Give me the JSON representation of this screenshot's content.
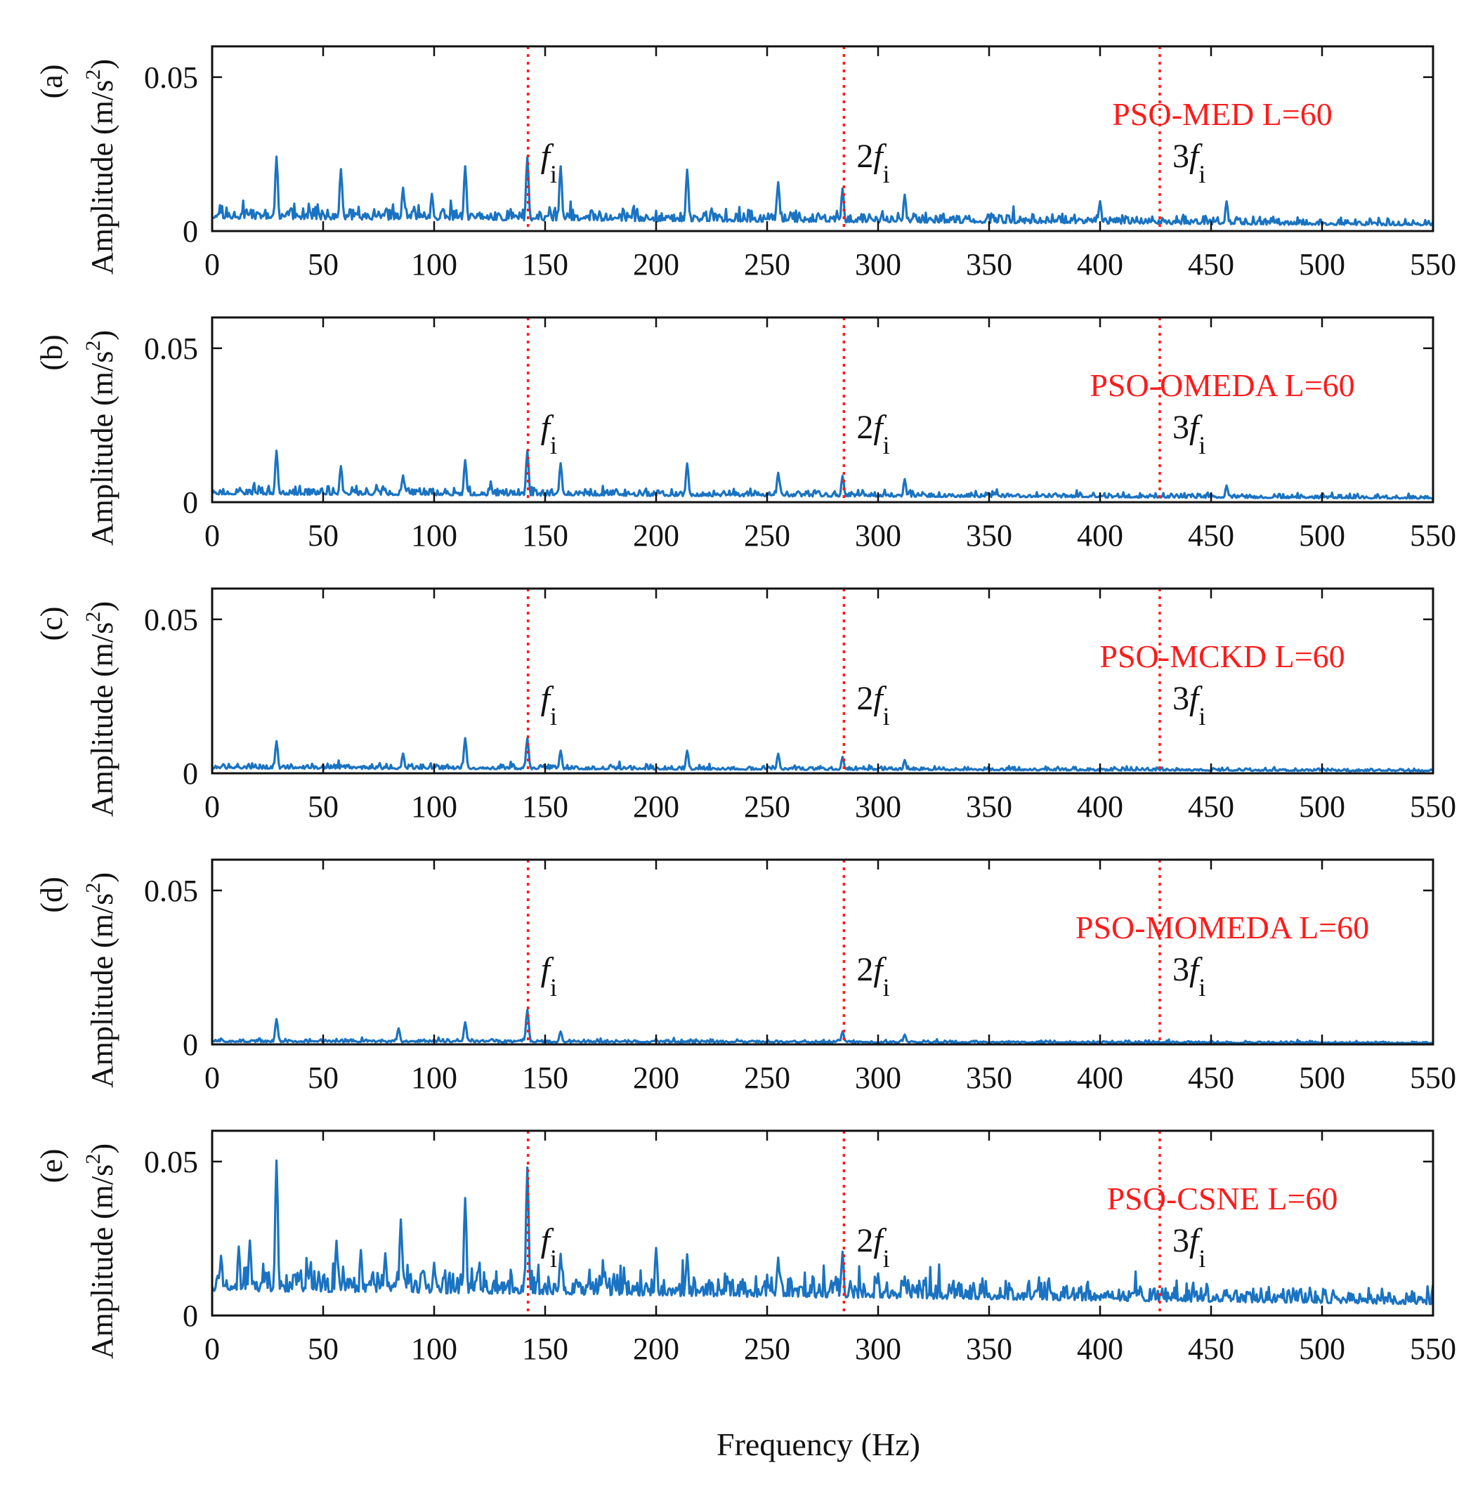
{
  "figure": {
    "xlabel": "Frequency (Hz)",
    "colors": {
      "spectrum": "#1a73c2",
      "marker": "#ff1a1a",
      "axis": "#111111"
    }
  },
  "chart_data": [
    {
      "type": "line",
      "panel_label": "(a)",
      "method_label": "PSO-MED L=60",
      "ylabel_prefix": "Amplitude (m/s",
      "ylabel_sup": "2",
      "ylabel_suffix": ")",
      "x_range": [
        0,
        550
      ],
      "ylim": [
        0,
        0.06
      ],
      "xticks": [
        "0",
        "50",
        "100",
        "150",
        "200",
        "250",
        "300",
        "350",
        "400",
        "450",
        "500",
        "550"
      ],
      "yticks": [
        "0",
        "0.05"
      ],
      "ytick_values": [
        0,
        0.05
      ],
      "baseline": 0.004,
      "noise": 0.0035,
      "seed": 11,
      "peaks": [
        {
          "f": 29,
          "a": 0.023
        },
        {
          "f": 58,
          "a": 0.019
        },
        {
          "f": 86,
          "a": 0.013
        },
        {
          "f": 99,
          "a": 0.011
        },
        {
          "f": 114,
          "a": 0.02
        },
        {
          "f": 142,
          "a": 0.023
        },
        {
          "f": 157,
          "a": 0.02
        },
        {
          "f": 214,
          "a": 0.019
        },
        {
          "f": 255,
          "a": 0.015
        },
        {
          "f": 284,
          "a": 0.013
        },
        {
          "f": 312,
          "a": 0.011
        },
        {
          "f": 400,
          "a": 0.009
        },
        {
          "f": 457,
          "a": 0.009
        }
      ],
      "harmonics": [
        {
          "freq": 142.3,
          "prefix": "",
          "symbol": "f",
          "sub": "i"
        },
        {
          "freq": 284.6,
          "prefix": "2",
          "symbol": "f",
          "sub": "i"
        },
        {
          "freq": 426.9,
          "prefix": "3",
          "symbol": "f",
          "sub": "i"
        }
      ]
    },
    {
      "type": "line",
      "panel_label": "(b)",
      "method_label": "PSO-OMEDA L=60",
      "ylabel_prefix": "Amplitude (m/s",
      "ylabel_sup": "2",
      "ylabel_suffix": ")",
      "x_range": [
        0,
        550
      ],
      "ylim": [
        0,
        0.06
      ],
      "xticks": [
        "0",
        "50",
        "100",
        "150",
        "200",
        "250",
        "300",
        "350",
        "400",
        "450",
        "500",
        "550"
      ],
      "yticks": [
        "0",
        "0.05"
      ],
      "ytick_values": [
        0,
        0.05
      ],
      "baseline": 0.0025,
      "noise": 0.0022,
      "seed": 23,
      "peaks": [
        {
          "f": 29,
          "a": 0.016
        },
        {
          "f": 58,
          "a": 0.011
        },
        {
          "f": 86,
          "a": 0.008
        },
        {
          "f": 114,
          "a": 0.013
        },
        {
          "f": 142,
          "a": 0.016
        },
        {
          "f": 157,
          "a": 0.012
        },
        {
          "f": 214,
          "a": 0.012
        },
        {
          "f": 255,
          "a": 0.009
        },
        {
          "f": 284,
          "a": 0.008
        },
        {
          "f": 312,
          "a": 0.007
        },
        {
          "f": 457,
          "a": 0.005
        }
      ],
      "harmonics": [
        {
          "freq": 142.3,
          "prefix": "",
          "symbol": "f",
          "sub": "i"
        },
        {
          "freq": 284.6,
          "prefix": "2",
          "symbol": "f",
          "sub": "i"
        },
        {
          "freq": 426.9,
          "prefix": "3",
          "symbol": "f",
          "sub": "i"
        }
      ]
    },
    {
      "type": "line",
      "panel_label": "(c)",
      "method_label": "PSO-MCKD L=60",
      "ylabel_prefix": "Amplitude (m/s",
      "ylabel_sup": "2",
      "ylabel_suffix": ")",
      "x_range": [
        0,
        550
      ],
      "ylim": [
        0,
        0.06
      ],
      "xticks": [
        "0",
        "50",
        "100",
        "150",
        "200",
        "250",
        "300",
        "350",
        "400",
        "450",
        "500",
        "550"
      ],
      "yticks": [
        "0",
        "0.05"
      ],
      "ytick_values": [
        0,
        0.05
      ],
      "baseline": 0.0015,
      "noise": 0.0014,
      "seed": 37,
      "peaks": [
        {
          "f": 29,
          "a": 0.01
        },
        {
          "f": 86,
          "a": 0.006
        },
        {
          "f": 114,
          "a": 0.011
        },
        {
          "f": 142,
          "a": 0.011
        },
        {
          "f": 157,
          "a": 0.007
        },
        {
          "f": 214,
          "a": 0.007
        },
        {
          "f": 255,
          "a": 0.006
        },
        {
          "f": 284,
          "a": 0.005
        },
        {
          "f": 312,
          "a": 0.004
        }
      ],
      "harmonics": [
        {
          "freq": 142.3,
          "prefix": "",
          "symbol": "f",
          "sub": "i"
        },
        {
          "freq": 284.6,
          "prefix": "2",
          "symbol": "f",
          "sub": "i"
        },
        {
          "freq": 426.9,
          "prefix": "3",
          "symbol": "f",
          "sub": "i"
        }
      ]
    },
    {
      "type": "line",
      "panel_label": "(d)",
      "method_label": "PSO-MOMEDA L=60",
      "ylabel_prefix": "Amplitude (m/s",
      "ylabel_sup": "2",
      "ylabel_suffix": ")",
      "x_range": [
        0,
        550
      ],
      "ylim": [
        0,
        0.06
      ],
      "xticks": [
        "0",
        "50",
        "100",
        "150",
        "200",
        "250",
        "300",
        "350",
        "400",
        "450",
        "500",
        "550"
      ],
      "yticks": [
        "0",
        "0.05"
      ],
      "ytick_values": [
        0,
        0.05
      ],
      "baseline": 0.0008,
      "noise": 0.0009,
      "seed": 51,
      "peaks": [
        {
          "f": 29,
          "a": 0.008
        },
        {
          "f": 84,
          "a": 0.005
        },
        {
          "f": 114,
          "a": 0.007
        },
        {
          "f": 142,
          "a": 0.011
        },
        {
          "f": 157,
          "a": 0.004
        },
        {
          "f": 284,
          "a": 0.004
        },
        {
          "f": 312,
          "a": 0.003
        }
      ],
      "harmonics": [
        {
          "freq": 142.3,
          "prefix": "",
          "symbol": "f",
          "sub": "i"
        },
        {
          "freq": 284.6,
          "prefix": "2",
          "symbol": "f",
          "sub": "i"
        },
        {
          "freq": 426.9,
          "prefix": "3",
          "symbol": "f",
          "sub": "i"
        }
      ]
    },
    {
      "type": "line",
      "panel_label": "(e)",
      "method_label": "PSO-CSNE L=60",
      "ylabel_prefix": "Amplitude (m/s",
      "ylabel_sup": "2",
      "ylabel_suffix": ")",
      "x_range": [
        0,
        550
      ],
      "ylim": [
        0,
        0.06
      ],
      "xticks": [
        "0",
        "50",
        "100",
        "150",
        "200",
        "250",
        "300",
        "350",
        "400",
        "450",
        "500",
        "550"
      ],
      "yticks": [
        "0",
        "0.05"
      ],
      "ytick_values": [
        0,
        0.05
      ],
      "baseline": 0.008,
      "noise": 0.0075,
      "seed": 79,
      "peaks": [
        {
          "f": 4,
          "a": 0.017
        },
        {
          "f": 12,
          "a": 0.02
        },
        {
          "f": 17,
          "a": 0.022
        },
        {
          "f": 29,
          "a": 0.048
        },
        {
          "f": 56,
          "a": 0.022
        },
        {
          "f": 67,
          "a": 0.019
        },
        {
          "f": 78,
          "a": 0.018
        },
        {
          "f": 85,
          "a": 0.029
        },
        {
          "f": 100,
          "a": 0.015
        },
        {
          "f": 114,
          "a": 0.036
        },
        {
          "f": 142,
          "a": 0.046
        },
        {
          "f": 157,
          "a": 0.018
        },
        {
          "f": 200,
          "a": 0.02
        },
        {
          "f": 214,
          "a": 0.018
        },
        {
          "f": 255,
          "a": 0.017
        },
        {
          "f": 284,
          "a": 0.019
        },
        {
          "f": 300,
          "a": 0.012
        },
        {
          "f": 312,
          "a": 0.011
        },
        {
          "f": 343,
          "a": 0.009
        },
        {
          "f": 457,
          "a": 0.007
        },
        {
          "f": 485,
          "a": 0.007
        }
      ],
      "harmonics": [
        {
          "freq": 142.3,
          "prefix": "",
          "symbol": "f",
          "sub": "i"
        },
        {
          "freq": 284.6,
          "prefix": "2",
          "symbol": "f",
          "sub": "i"
        },
        {
          "freq": 426.9,
          "prefix": "3",
          "symbol": "f",
          "sub": "i"
        }
      ]
    }
  ]
}
